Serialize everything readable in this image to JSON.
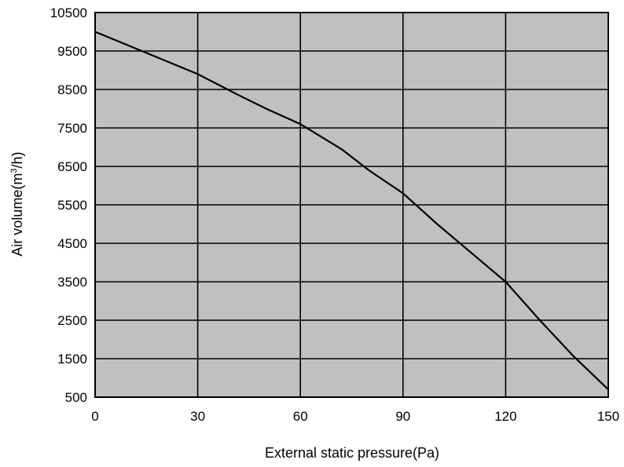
{
  "chart_data": {
    "type": "line",
    "title": "",
    "xlabel": "External static pressure(Pa)",
    "ylabel_main": "Air volume(m",
    "ylabel_sup": "3",
    "ylabel_tail": "/h)",
    "xlim": [
      0,
      150
    ],
    "ylim": [
      500,
      10500
    ],
    "xticks": [
      0,
      30,
      60,
      90,
      120,
      150
    ],
    "yticks": [
      500,
      1500,
      2500,
      3500,
      4500,
      5500,
      6500,
      7500,
      8500,
      9500,
      10500
    ],
    "grid": true,
    "background_color": "#c0c0c0",
    "line_color": "#000000",
    "series": [
      {
        "x": [
          0,
          15,
          30,
          42,
          50,
          60,
          72,
          80,
          90,
          100,
          110,
          120,
          130,
          140,
          150
        ],
        "y": [
          10000,
          9450,
          8900,
          8350,
          8000,
          7600,
          6950,
          6400,
          5800,
          5000,
          4250,
          3500,
          2500,
          1550,
          700
        ]
      }
    ]
  }
}
